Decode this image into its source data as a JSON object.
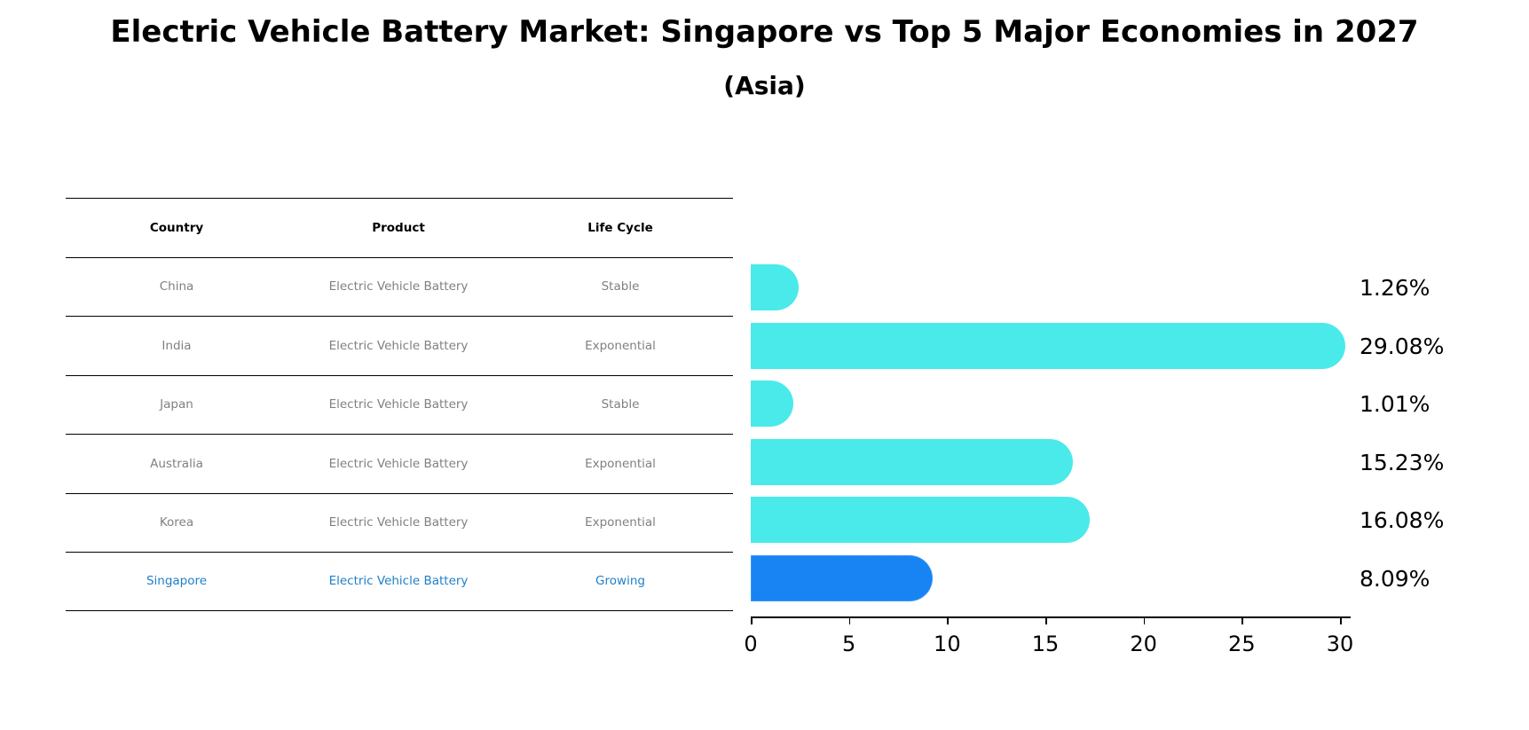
{
  "header": {
    "title": "Electric Vehicle Battery Market: Singapore vs Top 5 Major Economies in 2027",
    "subtitle": "(Asia)"
  },
  "table": {
    "columns": [
      "Country",
      "Product",
      "Life Cycle"
    ],
    "rows": [
      [
        "China",
        "Electric Vehicle Battery",
        "Stable"
      ],
      [
        "India",
        "Electric Vehicle Battery",
        "Exponential"
      ],
      [
        "Japan",
        "Electric Vehicle Battery",
        "Stable"
      ],
      [
        "Australia",
        "Electric Vehicle Battery",
        "Exponential"
      ],
      [
        "Korea",
        "Electric Vehicle Battery",
        "Exponential"
      ],
      [
        "Singapore",
        "Electric Vehicle Battery",
        "Growing"
      ]
    ]
  },
  "colors": {
    "bar": "#4aeaea",
    "highlight_bar": "#1884f4",
    "highlight_text": "#1f7fc9",
    "muted_text": "#808080"
  },
  "chart_data": {
    "type": "bar",
    "orientation": "horizontal",
    "title": "Electric Vehicle Battery Market: Singapore vs Top 5 Major Economies in 2027",
    "subtitle": "(Asia)",
    "categories": [
      "China",
      "India",
      "Japan",
      "Australia",
      "Korea",
      "Singapore"
    ],
    "values": [
      1.26,
      29.08,
      1.01,
      15.23,
      16.08,
      8.09
    ],
    "value_labels": [
      "1.26%",
      "29.08%",
      "1.01%",
      "15.23%",
      "16.08%",
      "8.09%"
    ],
    "highlight": "Singapore",
    "xlabel": "",
    "ylabel": "",
    "xlim": [
      0,
      30.5
    ],
    "xticks": [
      "0",
      "5",
      "10",
      "15",
      "20",
      "25",
      "30"
    ],
    "grid": false,
    "legend": null
  }
}
